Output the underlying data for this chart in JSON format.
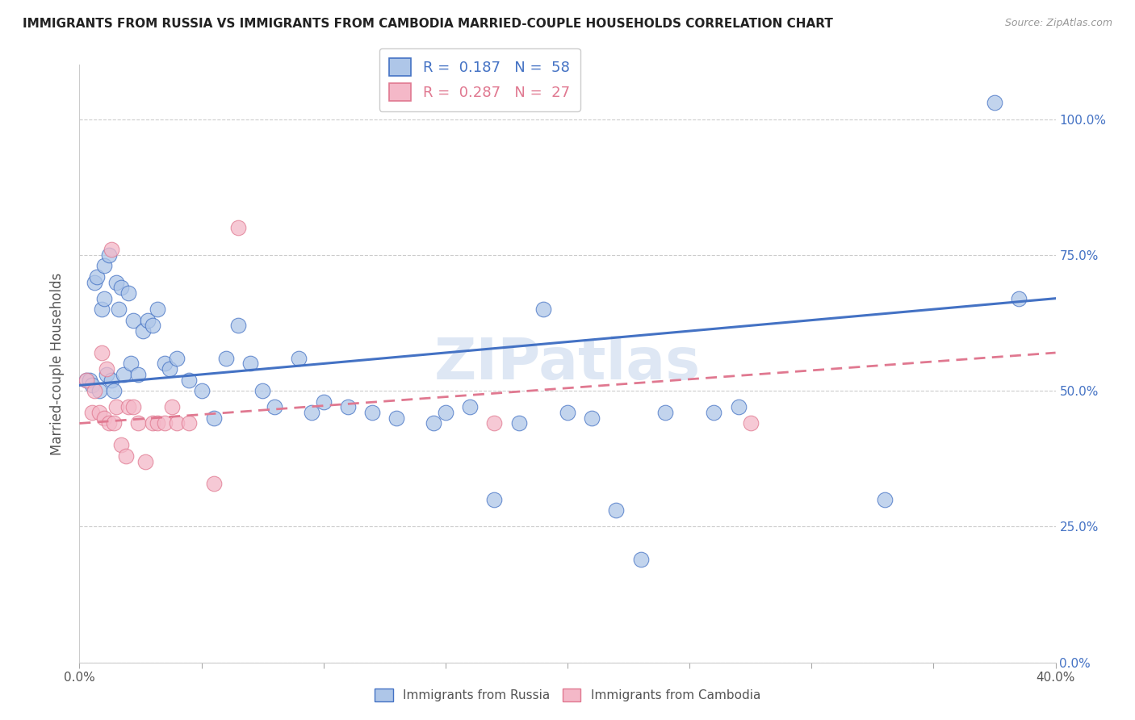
{
  "title": "IMMIGRANTS FROM RUSSIA VS IMMIGRANTS FROM CAMBODIA MARRIED-COUPLE HOUSEHOLDS CORRELATION CHART",
  "source": "Source: ZipAtlas.com",
  "ylabel": "Married-couple Households",
  "ylabel_ticks": [
    "0.0%",
    "25.0%",
    "50.0%",
    "75.0%",
    "100.0%"
  ],
  "ylabel_tick_vals": [
    0.0,
    25.0,
    50.0,
    75.0,
    100.0
  ],
  "xmin": 0.0,
  "xmax": 40.0,
  "ymin": 0.0,
  "ymax": 110.0,
  "russia_R": 0.187,
  "russia_N": 58,
  "cambodia_R": 0.287,
  "cambodia_N": 27,
  "russia_color": "#aec6e8",
  "cambodia_color": "#f4b8c8",
  "russia_line_color": "#4472c4",
  "cambodia_line_color": "#e07890",
  "watermark_color": "#c8d8ee",
  "russia_x": [
    0.3,
    0.4,
    0.5,
    0.6,
    0.7,
    0.8,
    0.9,
    1.0,
    1.0,
    1.1,
    1.2,
    1.3,
    1.4,
    1.5,
    1.6,
    1.7,
    1.8,
    2.0,
    2.1,
    2.2,
    2.4,
    2.6,
    2.8,
    3.0,
    3.2,
    3.5,
    3.7,
    4.0,
    4.5,
    5.0,
    5.5,
    6.0,
    6.5,
    7.0,
    7.5,
    8.0,
    9.0,
    9.5,
    10.0,
    11.0,
    12.0,
    13.0,
    14.5,
    15.0,
    16.0,
    17.0,
    18.0,
    19.0,
    20.0,
    21.0,
    22.0,
    23.0,
    24.0,
    26.0,
    27.0,
    33.0,
    37.5,
    38.5
  ],
  "russia_y": [
    52.0,
    52.0,
    51.0,
    70.0,
    71.0,
    50.0,
    65.0,
    67.0,
    73.0,
    53.0,
    75.0,
    52.0,
    50.0,
    70.0,
    65.0,
    69.0,
    53.0,
    68.0,
    55.0,
    63.0,
    53.0,
    61.0,
    63.0,
    62.0,
    65.0,
    55.0,
    54.0,
    56.0,
    52.0,
    50.0,
    45.0,
    56.0,
    62.0,
    55.0,
    50.0,
    47.0,
    56.0,
    46.0,
    48.0,
    47.0,
    46.0,
    45.0,
    44.0,
    46.0,
    47.0,
    30.0,
    44.0,
    65.0,
    46.0,
    45.0,
    28.0,
    19.0,
    46.0,
    46.0,
    47.0,
    30.0,
    103.0,
    67.0
  ],
  "cambodia_x": [
    0.3,
    0.5,
    0.6,
    0.8,
    0.9,
    1.0,
    1.1,
    1.2,
    1.3,
    1.4,
    1.5,
    1.7,
    1.9,
    2.0,
    2.2,
    2.4,
    2.7,
    3.0,
    3.2,
    3.5,
    3.8,
    4.0,
    4.5,
    5.5,
    6.5,
    17.0,
    27.5
  ],
  "cambodia_y": [
    52.0,
    46.0,
    50.0,
    46.0,
    57.0,
    45.0,
    54.0,
    44.0,
    76.0,
    44.0,
    47.0,
    40.0,
    38.0,
    47.0,
    47.0,
    44.0,
    37.0,
    44.0,
    44.0,
    44.0,
    47.0,
    44.0,
    44.0,
    33.0,
    80.0,
    44.0,
    44.0
  ]
}
